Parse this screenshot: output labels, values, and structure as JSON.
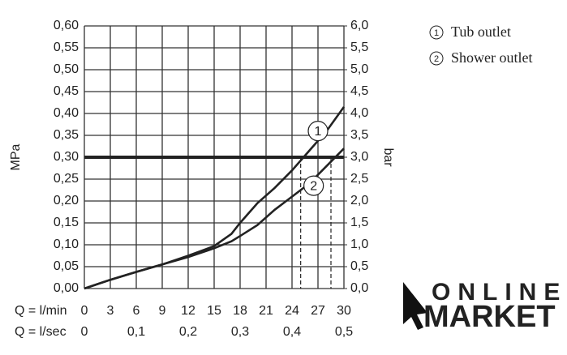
{
  "chart_data": {
    "type": "line",
    "x": [
      0,
      3,
      6,
      9,
      12,
      15,
      17,
      18,
      20,
      22,
      24,
      26,
      28,
      30
    ],
    "series": [
      {
        "name": "Tub outlet",
        "marker": "1",
        "color": "#222222",
        "values": [
          0,
          0.02,
          0.038,
          0.055,
          0.075,
          0.097,
          0.125,
          0.15,
          0.195,
          0.23,
          0.27,
          0.315,
          0.36,
          0.415
        ]
      },
      {
        "name": "Shower outlet",
        "marker": "2",
        "color": "#222222",
        "values": [
          0,
          0.02,
          0.038,
          0.055,
          0.072,
          0.092,
          0.108,
          0.12,
          0.145,
          0.18,
          0.21,
          0.24,
          0.28,
          0.32
        ]
      }
    ],
    "xlabel": "Q = l/min",
    "x2label": "Q = l/sec",
    "ylabel": "MPa",
    "y2label": "bar",
    "xlim": [
      0,
      30
    ],
    "xticks": [
      0,
      3,
      6,
      9,
      12,
      15,
      18,
      21,
      24,
      27,
      30
    ],
    "x2lim": [
      0,
      0.5
    ],
    "x2ticks": [
      0,
      {
        "value": 0.1,
        "label": "0,1"
      },
      {
        "value": 0.2,
        "label": "0,2"
      },
      {
        "value": 0.3,
        "label": "0,3"
      },
      {
        "value": 0.4,
        "label": "0,4"
      },
      {
        "value": 0.5,
        "label": "0,5"
      }
    ],
    "ylim": [
      0,
      0.6
    ],
    "yticks": [
      {
        "value": 0,
        "label": "0,00"
      },
      {
        "value": 0.05,
        "label": "0,05"
      },
      {
        "value": 0.1,
        "label": "0,10"
      },
      {
        "value": 0.15,
        "label": "0,15"
      },
      {
        "value": 0.2,
        "label": "0,20"
      },
      {
        "value": 0.25,
        "label": "0,25"
      },
      {
        "value": 0.3,
        "label": "0,30"
      },
      {
        "value": 0.35,
        "label": "0,35"
      },
      {
        "value": 0.4,
        "label": "0,40"
      },
      {
        "value": 0.45,
        "label": "0,45"
      },
      {
        "value": 0.5,
        "label": "0,50"
      },
      {
        "value": 0.55,
        "label": "0,55"
      },
      {
        "value": 0.6,
        "label": "0,60"
      }
    ],
    "y2lim": [
      0,
      6
    ],
    "y2ticks": [
      {
        "value": 0,
        "label": "0,0"
      },
      {
        "value": 0.5,
        "label": "0,5"
      },
      {
        "value": 1,
        "label": "1,0"
      },
      {
        "value": 1.5,
        "label": "1,5"
      },
      {
        "value": 2,
        "label": "2,0"
      },
      {
        "value": 2.5,
        "label": "2,5"
      },
      {
        "value": 3,
        "label": "3,0"
      },
      {
        "value": 3.5,
        "label": "3,5"
      },
      {
        "value": 4,
        "label": "4,0"
      },
      {
        "value": 4.5,
        "label": "4,5"
      },
      {
        "value": 5,
        "label": "5,0"
      },
      {
        "value": 5.5,
        "label": "5,5"
      },
      {
        "value": 6,
        "label": "6,0"
      }
    ],
    "grid": true,
    "reference_y": 0.3,
    "reference_x": [
      25,
      28.5
    ],
    "series_label_positions": [
      [
        27,
        0.36
      ],
      [
        26.5,
        0.235
      ]
    ]
  },
  "logo": {
    "line1": "ONLINE",
    "line2": "MARKET"
  }
}
